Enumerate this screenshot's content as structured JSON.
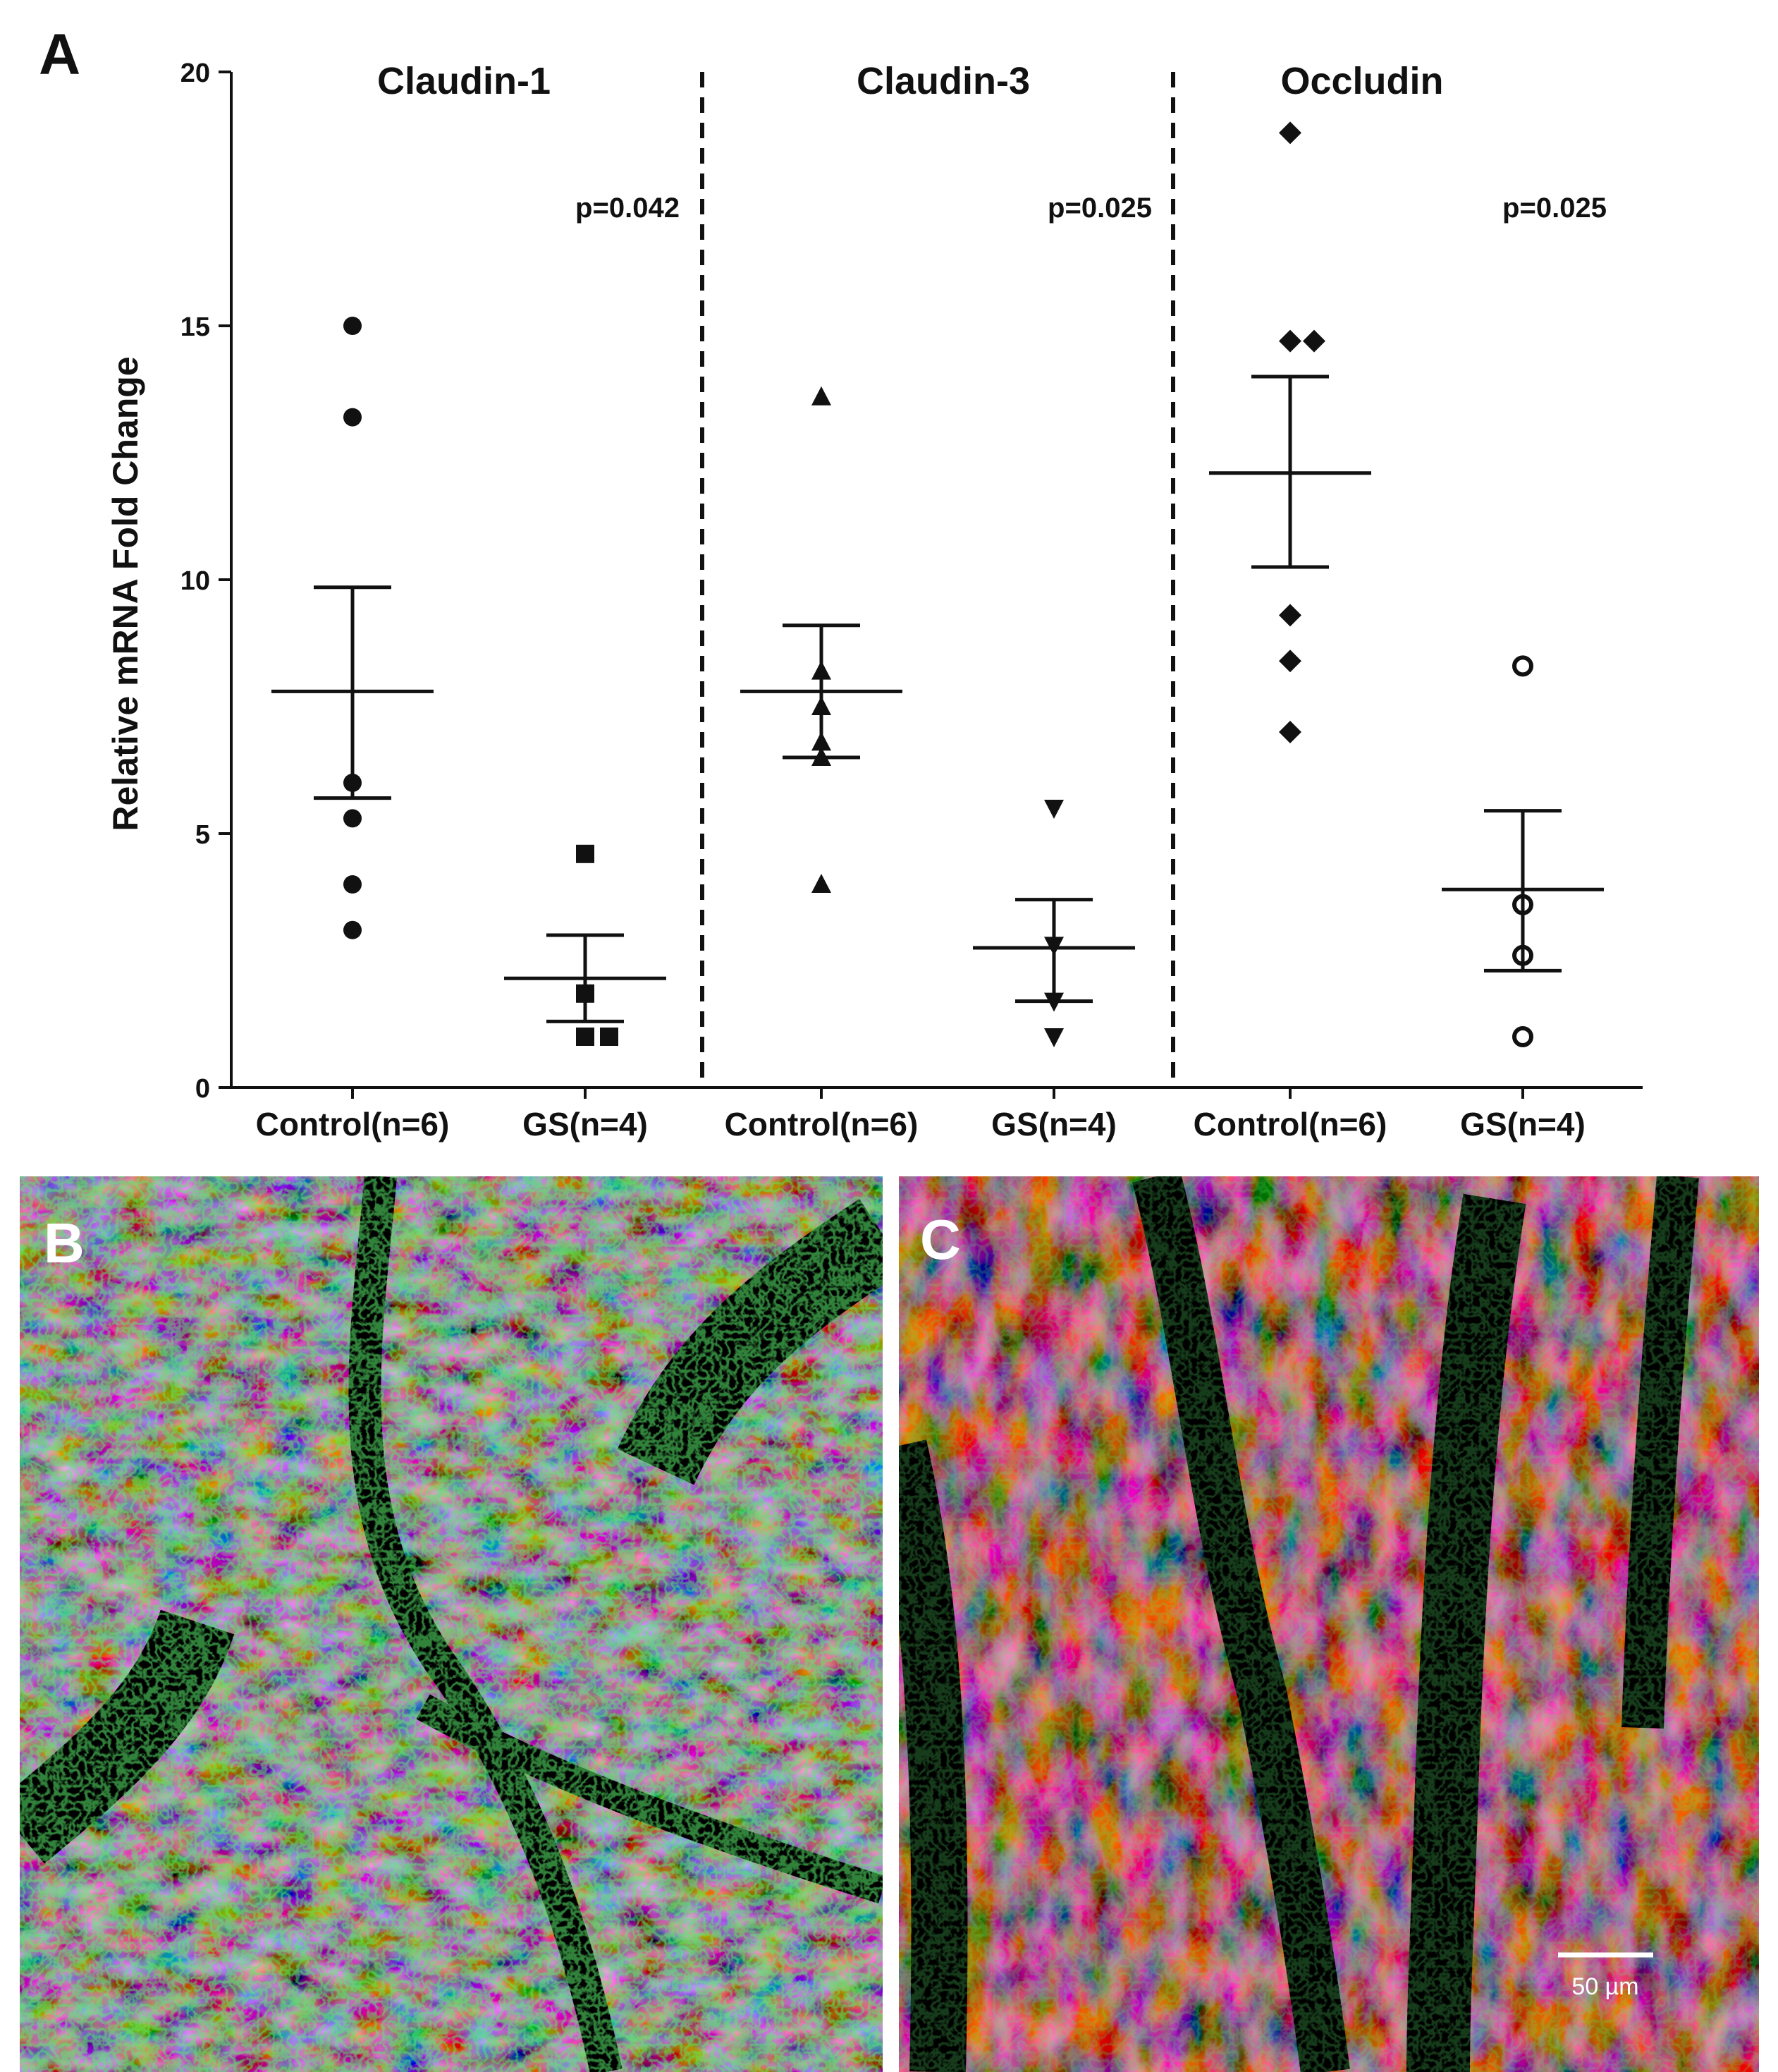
{
  "panel_labels": {
    "a": "A",
    "b": "B",
    "c": "C"
  },
  "scale_bar_label": "50 µm",
  "colors": {
    "ink": "#111111",
    "image_bg": "#000000",
    "nuclei": "#1f3cff",
    "membrane": "#e0201a",
    "junction": "#2bd62b"
  },
  "chart_data": {
    "type": "scatter",
    "ylabel": "Relative mRNA Fold Change",
    "ylim": [
      0,
      20
    ],
    "yticks": [
      0,
      5,
      10,
      15,
      20
    ],
    "groups": [
      {
        "title": "Claudin-1",
        "p_value": "p=0.042",
        "series": [
          {
            "label": "Control(n=6)",
            "marker": "circle-filled",
            "values": [
              15.0,
              13.2,
              6.0,
              5.3,
              4.0,
              3.1
            ],
            "mean": 7.8,
            "sem_low": 5.7,
            "sem_high": 9.85
          },
          {
            "label": "GS(n=4)",
            "marker": "square-filled",
            "values": [
              4.6,
              1.85,
              1.0,
              1.0
            ],
            "mean": 2.15,
            "sem_low": 1.3,
            "sem_high": 3.0
          }
        ]
      },
      {
        "title": "Claudin-3",
        "p_value": "p=0.025",
        "series": [
          {
            "label": "Control(n=6)",
            "marker": "triangle-up-filled",
            "values": [
              13.6,
              8.2,
              7.5,
              6.8,
              6.5,
              4.0
            ],
            "mean": 7.8,
            "sem_low": 6.5,
            "sem_high": 9.1
          },
          {
            "label": "GS(n=4)",
            "marker": "triangle-down-filled",
            "values": [
              5.5,
              2.8,
              1.7,
              1.0
            ],
            "mean": 2.75,
            "sem_low": 1.7,
            "sem_high": 3.7
          }
        ]
      },
      {
        "title": "Occludin",
        "p_value": "p=0.025",
        "series": [
          {
            "label": "Control(n=6)",
            "marker": "diamond-filled",
            "values": [
              18.8,
              14.7,
              14.7,
              9.3,
              8.4,
              7.0
            ],
            "mean": 12.1,
            "sem_low": 10.25,
            "sem_high": 14.0
          },
          {
            "label": "GS(n=4)",
            "marker": "circle-open",
            "values": [
              8.3,
              3.6,
              2.6,
              1.0
            ],
            "mean": 3.9,
            "sem_low": 2.3,
            "sem_high": 5.45
          }
        ]
      }
    ]
  }
}
